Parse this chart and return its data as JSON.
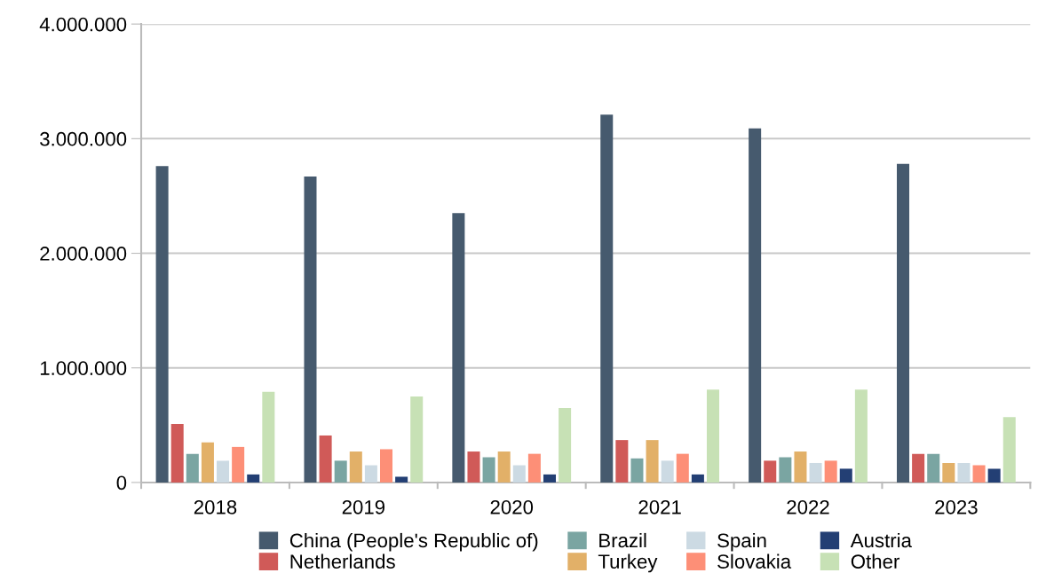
{
  "chart_data": {
    "type": "bar",
    "categories": [
      "2018",
      "2019",
      "2020",
      "2021",
      "2022",
      "2023"
    ],
    "series": [
      {
        "name": "China (People's Republic of)",
        "color": "#465a6e",
        "values": [
          2760000,
          2670000,
          2350000,
          3210000,
          3090000,
          2780000
        ]
      },
      {
        "name": "Netherlands",
        "color": "#d05a58",
        "values": [
          510000,
          410000,
          270000,
          370000,
          190000,
          250000
        ]
      },
      {
        "name": "Brazil",
        "color": "#7aa5a2",
        "values": [
          250000,
          190000,
          220000,
          210000,
          220000,
          250000
        ]
      },
      {
        "name": "Turkey",
        "color": "#e2b068",
        "values": [
          350000,
          270000,
          270000,
          370000,
          270000,
          170000
        ]
      },
      {
        "name": "Spain",
        "color": "#ccdae3",
        "values": [
          190000,
          150000,
          150000,
          190000,
          170000,
          170000
        ]
      },
      {
        "name": "Slovakia",
        "color": "#fd8f77",
        "values": [
          310000,
          290000,
          250000,
          250000,
          190000,
          150000
        ]
      },
      {
        "name": "Austria",
        "color": "#233f74",
        "values": [
          70000,
          50000,
          70000,
          70000,
          120000,
          120000
        ]
      },
      {
        "name": "Other",
        "color": "#c7e1b5",
        "values": [
          790000,
          750000,
          650000,
          810000,
          810000,
          570000
        ]
      }
    ],
    "ylim": [
      0,
      4000000
    ],
    "yticks": [
      {
        "value": 0,
        "label": "0"
      },
      {
        "value": 1000000,
        "label": "1.000.000"
      },
      {
        "value": 2000000,
        "label": "2.000.000"
      },
      {
        "value": 3000000,
        "label": "3.000.000"
      },
      {
        "value": 4000000,
        "label": "4.000.000"
      }
    ],
    "grid": "y",
    "legend": "bottom"
  }
}
